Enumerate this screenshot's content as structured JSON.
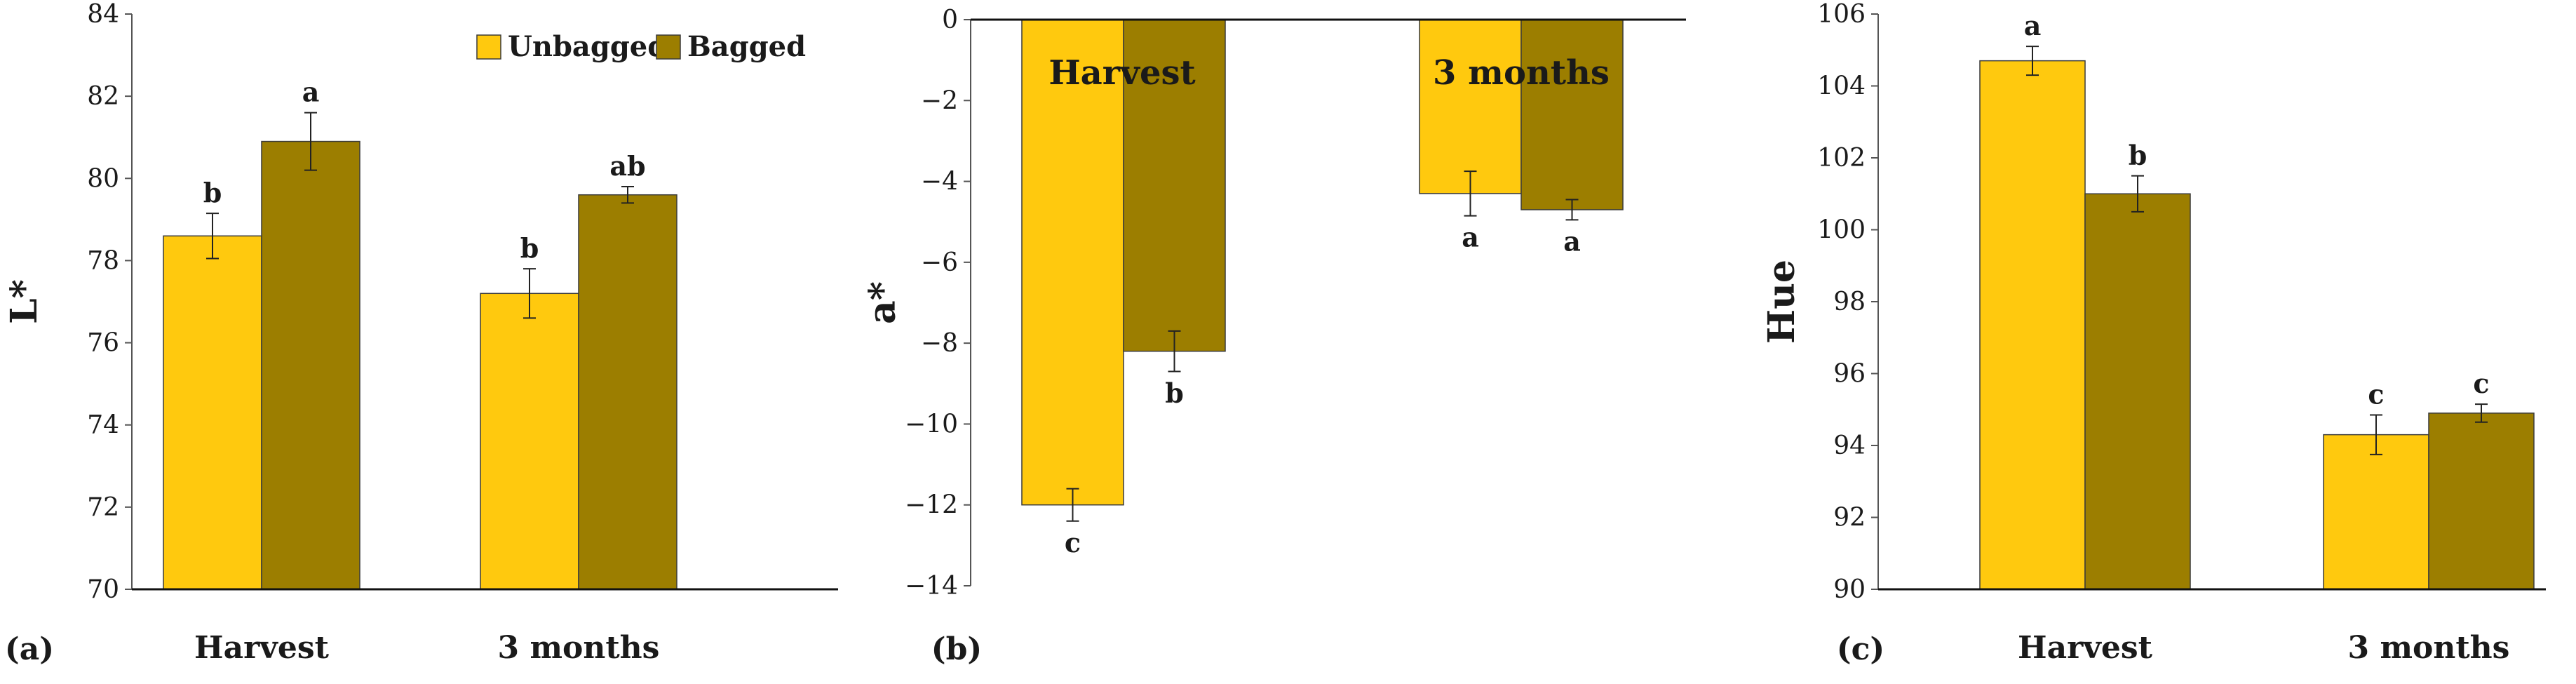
{
  "colors": {
    "unbagged": "#FFC90E",
    "bagged": "#9C7E00",
    "stroke": "#3a3a3a"
  },
  "legend": {
    "unbagged": "Unbagged",
    "bagged": "Bagged"
  },
  "chart_data": [
    {
      "type": "bar",
      "panel_label": "(a)",
      "ylabel": "L*",
      "ylim": [
        70,
        84
      ],
      "yticks": [
        70,
        72,
        74,
        76,
        78,
        80,
        82,
        84
      ],
      "categories": [
        "Harvest",
        "3 months"
      ],
      "series": [
        {
          "name": "Unbagged",
          "values": [
            78.6,
            77.2
          ],
          "errors": [
            0.55,
            0.6
          ],
          "letters": [
            "b",
            "b"
          ]
        },
        {
          "name": "Bagged",
          "values": [
            80.9,
            79.6
          ],
          "errors": [
            0.7,
            0.2
          ],
          "letters": [
            "a",
            "ab"
          ]
        }
      ],
      "legend_position": "top-right"
    },
    {
      "type": "bar",
      "panel_label": "(b)",
      "ylabel": "a*",
      "ylim": [
        -14,
        0
      ],
      "yticks": [
        0,
        -2,
        -4,
        -6,
        -8,
        -10,
        -12,
        -14
      ],
      "categories": [
        "Harvest",
        "3 months"
      ],
      "series": [
        {
          "name": "Unbagged",
          "values": [
            -12.0,
            -4.3
          ],
          "errors": [
            0.4,
            0.55
          ],
          "letters": [
            "c",
            "a"
          ]
        },
        {
          "name": "Bagged",
          "values": [
            -8.2,
            -4.7
          ],
          "errors": [
            0.5,
            0.25
          ],
          "letters": [
            "b",
            "a"
          ]
        }
      ]
    },
    {
      "type": "bar",
      "panel_label": "(c)",
      "ylabel": "Hue",
      "ylim": [
        90,
        106
      ],
      "yticks": [
        90,
        92,
        94,
        96,
        98,
        100,
        102,
        104,
        106
      ],
      "categories": [
        "Harvest",
        "3 months"
      ],
      "series": [
        {
          "name": "Unbagged",
          "values": [
            104.7,
            94.3
          ],
          "errors": [
            0.4,
            0.55
          ],
          "letters": [
            "a",
            "c"
          ]
        },
        {
          "name": "Bagged",
          "values": [
            101.0,
            94.9
          ],
          "errors": [
            0.5,
            0.25
          ],
          "letters": [
            "b",
            "c"
          ]
        }
      ]
    }
  ]
}
